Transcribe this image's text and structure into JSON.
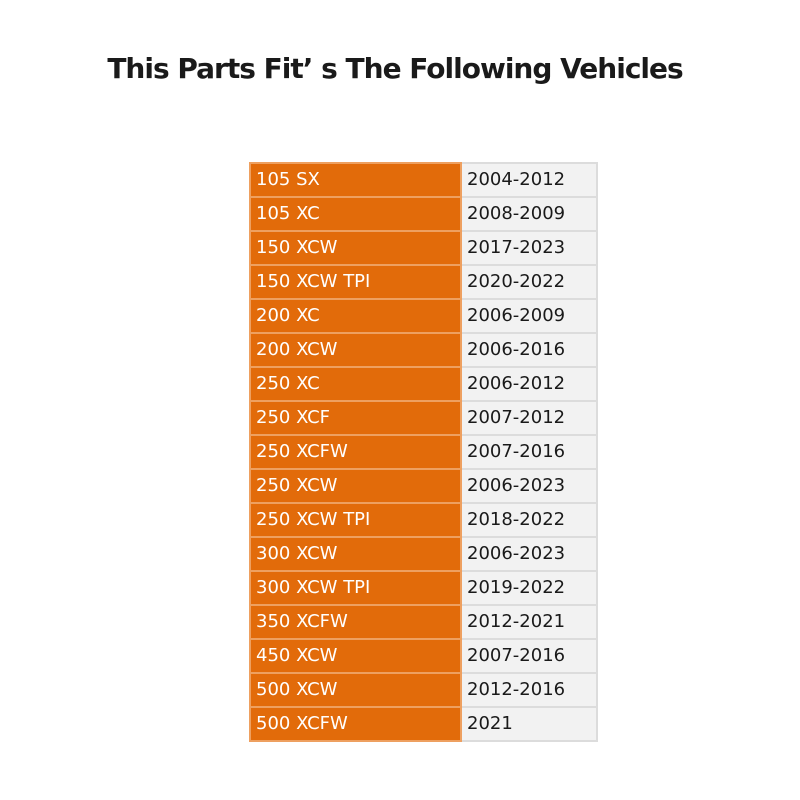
{
  "title": "This Parts Fit’ s The Following Vehicles",
  "colors": {
    "model_cell": "#e26b0a",
    "years_cell": "#f2f2f2"
  },
  "vehicles": [
    {
      "model": "105 SX",
      "years": "2004-2012"
    },
    {
      "model": "105 XC",
      "years": "2008-2009"
    },
    {
      "model": "150 XCW",
      "years": "2017-2023"
    },
    {
      "model": "150 XCW TPI",
      "years": "2020-2022"
    },
    {
      "model": "200 XC",
      "years": "2006-2009"
    },
    {
      "model": "200 XCW",
      "years": "2006-2016"
    },
    {
      "model": "250 XC",
      "years": "2006-2012"
    },
    {
      "model": "250 XCF",
      "years": "2007-2012"
    },
    {
      "model": "250 XCFW",
      "years": "2007-2016"
    },
    {
      "model": "250 XCW",
      "years": "2006-2023"
    },
    {
      "model": "250 XCW TPI",
      "years": "2018-2022"
    },
    {
      "model": "300 XCW",
      "years": "2006-2023"
    },
    {
      "model": "300 XCW TPI",
      "years": "2019-2022"
    },
    {
      "model": "350 XCFW",
      "years": "2012-2021"
    },
    {
      "model": "450 XCW",
      "years": "2007-2016"
    },
    {
      "model": "500 XCW",
      "years": "2012-2016"
    },
    {
      "model": "500 XCFW",
      "years": "2021"
    }
  ]
}
